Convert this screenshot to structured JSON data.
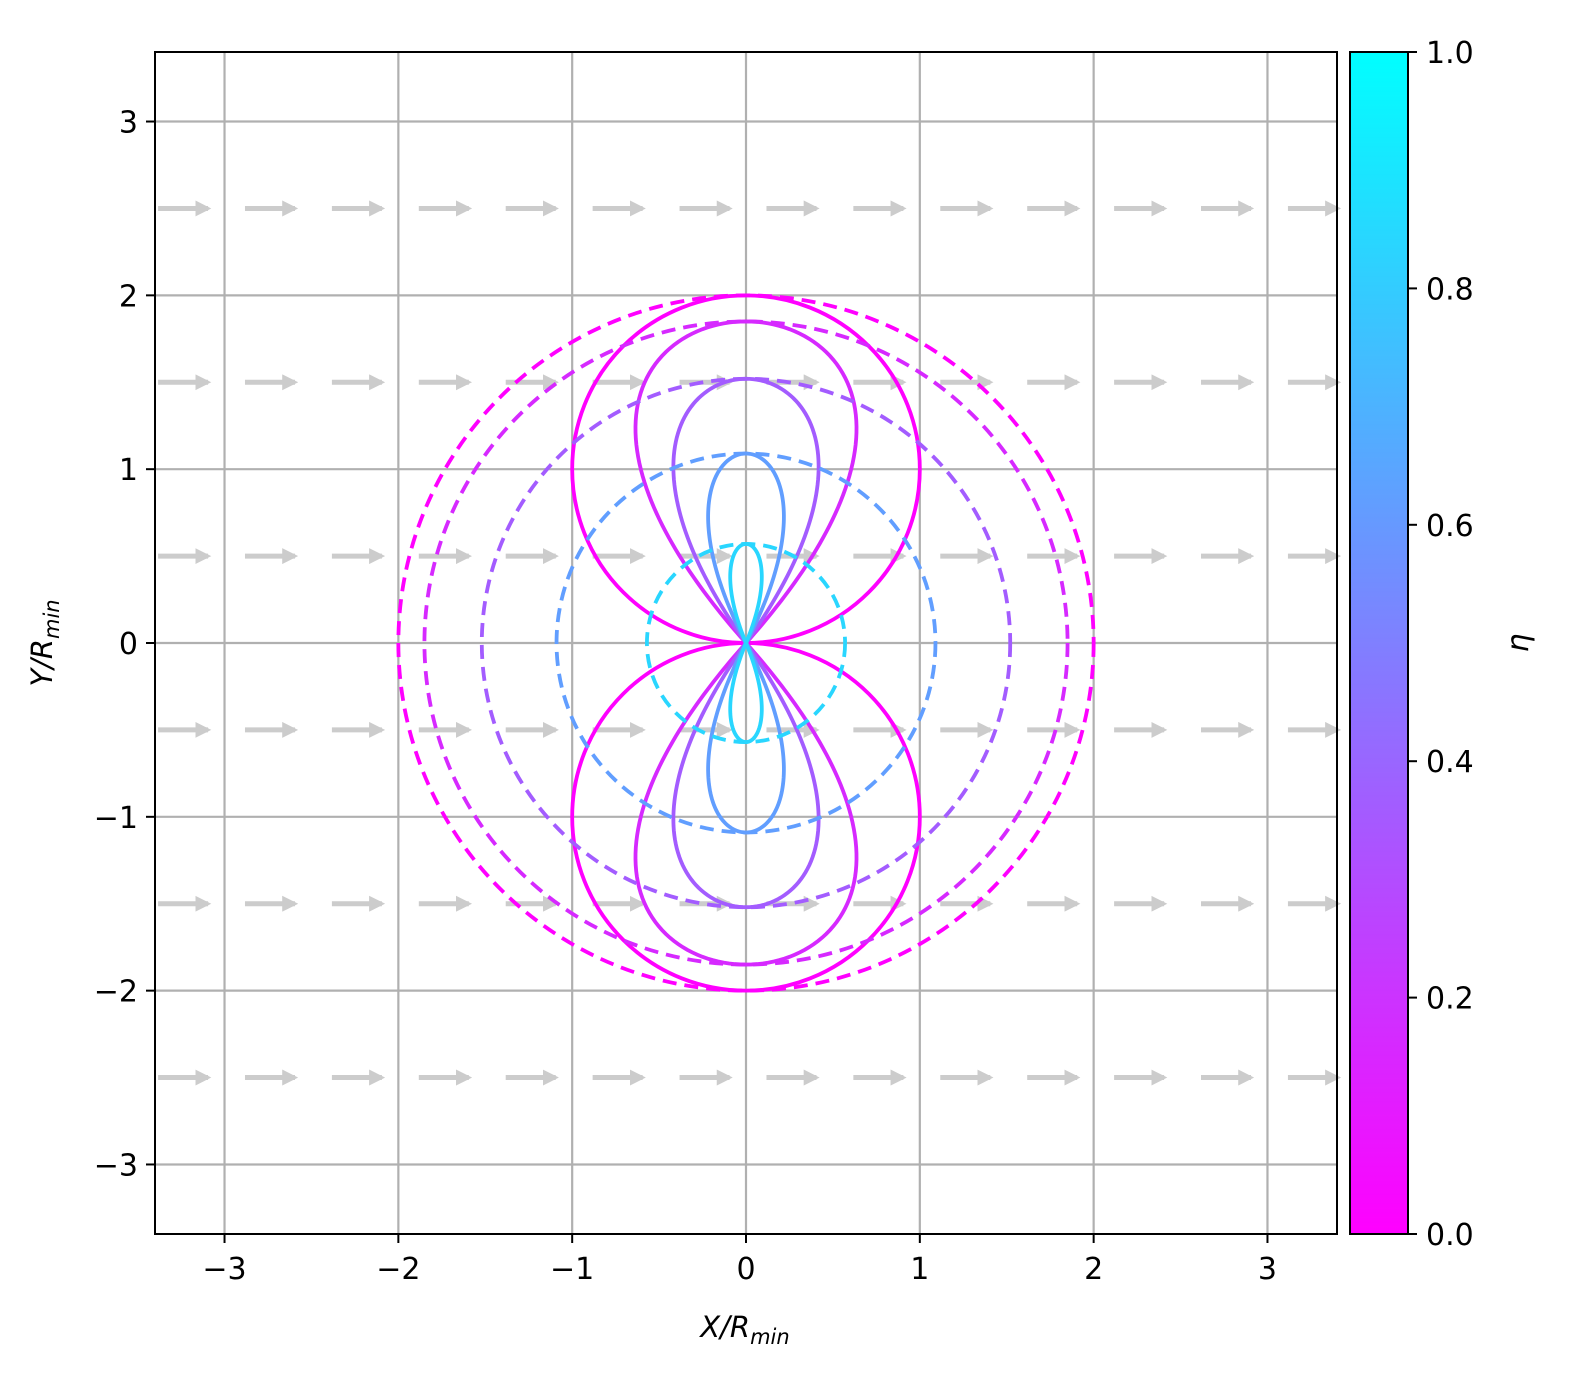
{
  "chart_data": {
    "type": "line",
    "title": "",
    "xlabel": {
      "main": "X/R",
      "sub": "min"
    },
    "ylabel": {
      "main": "Y/R",
      "sub": "min"
    },
    "xlim": [
      -3.4,
      3.4
    ],
    "ylim": [
      -3.4,
      3.4
    ],
    "xticks": [
      -3,
      -2,
      -1,
      0,
      1,
      2,
      3
    ],
    "yticks": [
      -3,
      -2,
      -1,
      0,
      1,
      2,
      3
    ],
    "xtick_labels": [
      "−3",
      "−2",
      "−1",
      "0",
      "1",
      "2",
      "3"
    ],
    "ytick_labels": [
      "−3",
      "−2",
      "−1",
      "0",
      "1",
      "2",
      "3"
    ],
    "grid": true,
    "colorbar": {
      "label": "η",
      "range": [
        0.0,
        1.0
      ],
      "ticks": [
        0.0,
        0.2,
        0.4,
        0.6,
        0.8,
        1.0
      ],
      "tick_labels": [
        "0.0",
        "0.2",
        "0.4",
        "0.6",
        "0.8",
        "1.0"
      ],
      "colormap": "cool_reversed",
      "color_low": "#ff00ff",
      "color_high": "#00ffff"
    },
    "flow_arrows": {
      "direction": "+x",
      "color": "#cccccc",
      "rows_y": [
        2.5,
        1.5,
        0.5,
        -0.5,
        -1.5,
        -2.5
      ],
      "cols_x": [
        -3.25,
        -2.75,
        -2.25,
        -1.75,
        -1.25,
        -0.75,
        -0.25,
        0.25,
        0.75,
        1.25,
        1.75,
        2.25,
        2.75,
        3.25
      ]
    },
    "series": [
      {
        "eta": 0.0,
        "style": "solid",
        "shape": "two circles",
        "lobe_center_y": 1.0,
        "lobe_radius": 1.0
      },
      {
        "eta": 0.0,
        "style": "dashed",
        "shape": "circle",
        "center_x": 0.0,
        "radius": 2.0
      },
      {
        "eta": 0.16,
        "style": "solid",
        "shape": "lobes",
        "lobe_extent_y": 1.85,
        "lobe_halfwidth_x": 0.7
      },
      {
        "eta": 0.16,
        "style": "dashed",
        "shape": "circle",
        "center_x": 0.0,
        "radius": 1.85
      },
      {
        "eta": 0.36,
        "style": "solid",
        "shape": "lobes",
        "lobe_extent_y": 1.52,
        "lobe_halfwidth_x": 0.46
      },
      {
        "eta": 0.36,
        "style": "dashed",
        "shape": "circle",
        "center_x": 0.0,
        "radius": 1.52
      },
      {
        "eta": 0.62,
        "style": "solid",
        "shape": "lobes",
        "lobe_extent_y": 1.09,
        "lobe_halfwidth_x": 0.24
      },
      {
        "eta": 0.62,
        "style": "dashed",
        "shape": "circle",
        "center_x": 0.0,
        "radius": 1.09
      },
      {
        "eta": 0.84,
        "style": "solid",
        "shape": "lobes",
        "lobe_extent_y": 0.57,
        "lobe_halfwidth_x": 0.1
      },
      {
        "eta": 0.84,
        "style": "dashed",
        "shape": "circle",
        "center_x": 0.0,
        "radius": 0.57
      }
    ]
  }
}
